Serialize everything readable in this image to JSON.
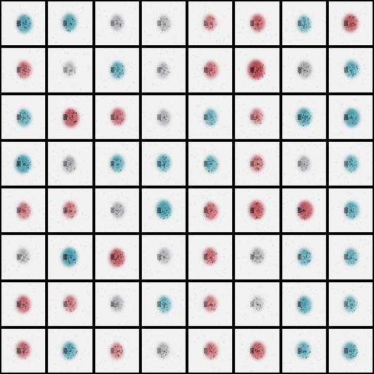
{
  "image": {
    "rows": 8,
    "cols": 8,
    "background_color": "#000000",
    "tile_background": "#f1f1f1",
    "palette": {
      "teal": "#2f8fa0",
      "red": "#b03a42",
      "gray": "#8a8a90",
      "dark": "#1a1a22"
    },
    "samples": [
      {
        "tone": "teal",
        "intensity": 0.75
      },
      {
        "tone": "teal",
        "intensity": 0.65
      },
      {
        "tone": "gray",
        "intensity": 0.35
      },
      {
        "tone": "gray",
        "intensity": 0.3
      },
      {
        "tone": "red",
        "intensity": 0.35
      },
      {
        "tone": "red",
        "intensity": 0.6
      },
      {
        "tone": "teal",
        "intensity": 0.45
      },
      {
        "tone": "red",
        "intensity": 0.7
      },
      {
        "tone": "red",
        "intensity": 0.55
      },
      {
        "tone": "gray",
        "intensity": 0.2
      },
      {
        "tone": "teal",
        "intensity": 0.55
      },
      {
        "tone": "gray",
        "intensity": 0.25
      },
      {
        "tone": "red",
        "intensity": 0.5
      },
      {
        "tone": "red",
        "intensity": 0.95
      },
      {
        "tone": "gray",
        "intensity": 0.5
      },
      {
        "tone": "teal",
        "intensity": 0.55
      },
      {
        "tone": "teal",
        "intensity": 0.55
      },
      {
        "tone": "red",
        "intensity": 0.8
      },
      {
        "tone": "red",
        "intensity": 0.55
      },
      {
        "tone": "gray",
        "intensity": 0.35
      },
      {
        "tone": "teal",
        "intensity": 0.45
      },
      {
        "tone": "red",
        "intensity": 0.35
      },
      {
        "tone": "teal",
        "intensity": 0.7
      },
      {
        "tone": "teal",
        "intensity": 0.8
      },
      {
        "tone": "teal",
        "intensity": 0.8
      },
      {
        "tone": "gray",
        "intensity": 0.4
      },
      {
        "tone": "teal",
        "intensity": 0.55
      },
      {
        "tone": "teal",
        "intensity": 0.55
      },
      {
        "tone": "teal",
        "intensity": 0.5
      },
      {
        "tone": "red",
        "intensity": 0.45
      },
      {
        "tone": "gray",
        "intensity": 0.3
      },
      {
        "tone": "teal",
        "intensity": 0.5
      },
      {
        "tone": "red",
        "intensity": 0.45
      },
      {
        "tone": "red",
        "intensity": 0.45
      },
      {
        "tone": "gray",
        "intensity": 0.35
      },
      {
        "tone": "teal",
        "intensity": 0.75
      },
      {
        "tone": "red",
        "intensity": 0.55
      },
      {
        "tone": "red",
        "intensity": 0.75
      },
      {
        "tone": "red",
        "intensity": 0.8
      },
      {
        "tone": "teal",
        "intensity": 0.6
      },
      {
        "tone": "gray",
        "intensity": 0.3
      },
      {
        "tone": "teal",
        "intensity": 0.85
      },
      {
        "tone": "red",
        "intensity": 0.75
      },
      {
        "tone": "gray",
        "intensity": 0.3
      },
      {
        "tone": "red",
        "intensity": 0.5
      },
      {
        "tone": "gray",
        "intensity": 0.4
      },
      {
        "tone": "teal",
        "intensity": 0.5
      },
      {
        "tone": "teal",
        "intensity": 0.5
      },
      {
        "tone": "red",
        "intensity": 0.6
      },
      {
        "tone": "red",
        "intensity": 0.4
      },
      {
        "tone": "gray",
        "intensity": 0.35
      },
      {
        "tone": "teal",
        "intensity": 0.45
      },
      {
        "tone": "red",
        "intensity": 0.4
      },
      {
        "tone": "gray",
        "intensity": 0.15
      },
      {
        "tone": "teal",
        "intensity": 0.6
      },
      {
        "tone": "teal",
        "intensity": 0.4
      },
      {
        "tone": "red",
        "intensity": 0.55
      },
      {
        "tone": "teal",
        "intensity": 0.6
      },
      {
        "tone": "red",
        "intensity": 0.35
      },
      {
        "tone": "gray",
        "intensity": 0.3
      },
      {
        "tone": "red",
        "intensity": 0.45
      },
      {
        "tone": "red",
        "intensity": 0.65
      },
      {
        "tone": "teal",
        "intensity": 0.5
      },
      {
        "tone": "teal",
        "intensity": 0.6
      }
    ]
  }
}
